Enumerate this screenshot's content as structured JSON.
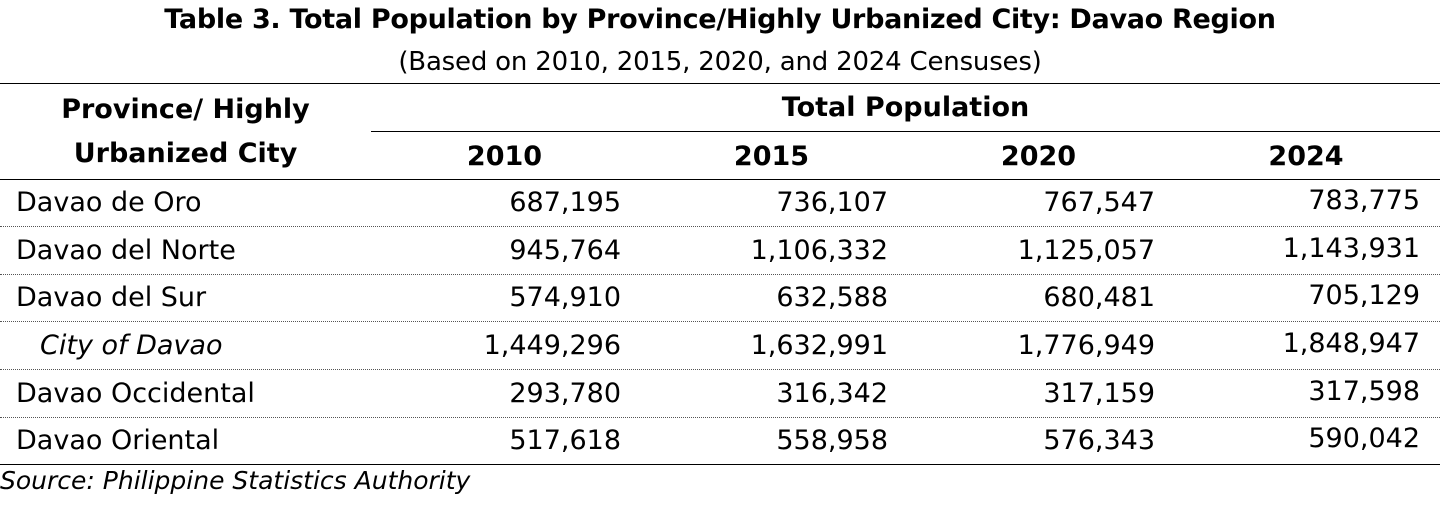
{
  "title": "Table 3. Total Population by Province/Highly Urbanized City: Davao Region",
  "subtitle": "(Based on 2010, 2015, 2020, and 2024 Censuses)",
  "header": {
    "row_label_line1": "Province/ Highly",
    "row_label_line2": "Urbanized City",
    "group_label": "Total Population",
    "years": [
      "2010",
      "2015",
      "2020",
      "2024"
    ]
  },
  "rows": [
    {
      "name": "Davao de Oro",
      "values": [
        "687,195",
        "736,107",
        "767,547",
        "783,775"
      ],
      "italic": false
    },
    {
      "name": "Davao del Norte",
      "values": [
        "945,764",
        "1,106,332",
        "1,125,057",
        "1,143,931"
      ],
      "italic": false
    },
    {
      "name": "Davao del Sur",
      "values": [
        "574,910",
        "632,588",
        "680,481",
        "705,129"
      ],
      "italic": false
    },
    {
      "name": "City of Davao",
      "values": [
        "1,449,296",
        "1,632,991",
        "1,776,949",
        "1,848,947"
      ],
      "italic": true
    },
    {
      "name": "Davao Occidental",
      "values": [
        "293,780",
        "316,342",
        "317,159",
        "317,598"
      ],
      "italic": false
    },
    {
      "name": "Davao Oriental",
      "values": [
        "517,618",
        "558,958",
        "576,343",
        "590,042"
      ],
      "italic": false
    }
  ],
  "source": "Source: Philippine Statistics Authority"
}
